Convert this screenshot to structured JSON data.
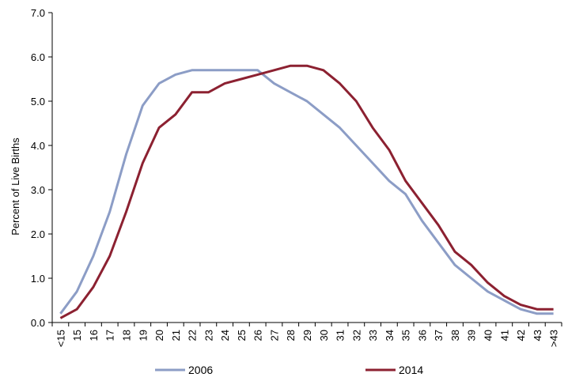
{
  "chart_data": {
    "type": "line",
    "ylabel": "Percent of Live Births",
    "xlabel": "",
    "ylim": [
      0,
      7
    ],
    "yticks": [
      "0.0",
      "1.0",
      "2.0",
      "3.0",
      "4.0",
      "5.0",
      "6.0",
      "7.0"
    ],
    "categories": [
      "<15",
      "15",
      "16",
      "17",
      "18",
      "19",
      "20",
      "21",
      "22",
      "23",
      "24",
      "25",
      "26",
      "27",
      "28",
      "29",
      "30",
      "31",
      "32",
      "33",
      "34",
      "35",
      "36",
      "37",
      "38",
      "39",
      "40",
      "41",
      "42",
      "43",
      ">43"
    ],
    "series": [
      {
        "name": "2006",
        "color": "#8c9dc6",
        "values": [
          0.2,
          0.7,
          1.5,
          2.5,
          3.8,
          4.9,
          5.4,
          5.6,
          5.7,
          5.7,
          5.7,
          5.7,
          5.7,
          5.4,
          5.2,
          5.0,
          4.7,
          4.4,
          4.0,
          3.6,
          3.2,
          2.9,
          2.3,
          1.8,
          1.3,
          1.0,
          0.7,
          0.5,
          0.3,
          0.2,
          0.2
        ]
      },
      {
        "name": "2014",
        "color": "#8c2131",
        "values": [
          0.1,
          0.3,
          0.8,
          1.5,
          2.5,
          3.6,
          4.4,
          4.7,
          5.2,
          5.2,
          5.4,
          5.5,
          5.6,
          5.7,
          5.8,
          5.8,
          5.7,
          5.4,
          5.0,
          4.4,
          3.9,
          3.2,
          2.7,
          2.2,
          1.6,
          1.3,
          0.9,
          0.6,
          0.4,
          0.3,
          0.3
        ]
      }
    ],
    "legend_position": "bottom",
    "grid": false
  }
}
